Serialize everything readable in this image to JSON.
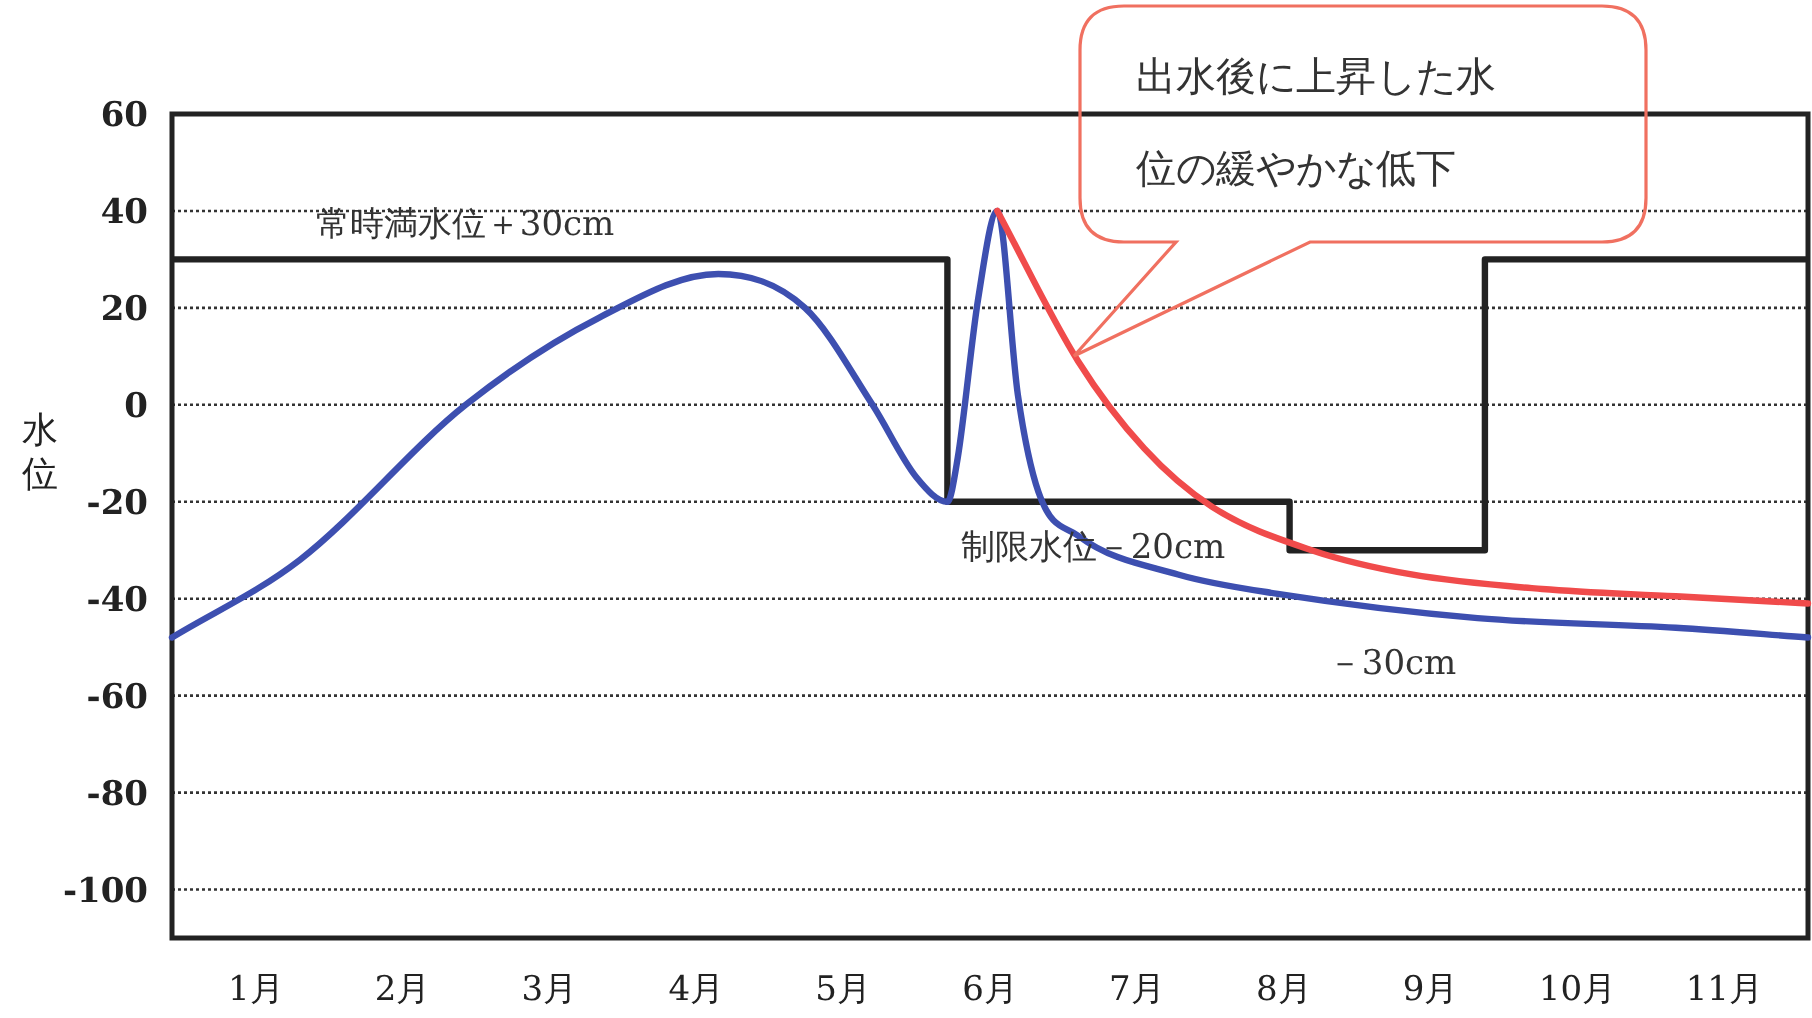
{
  "chart_data": {
    "type": "line",
    "ylabel": "水位",
    "xlim": [
      0.43,
      11.57
    ],
    "xticks": [
      {
        "value": 1,
        "label": "1月"
      },
      {
        "value": 2,
        "label": "2月"
      },
      {
        "value": 3,
        "label": "3月"
      },
      {
        "value": 4,
        "label": "4月"
      },
      {
        "value": 5,
        "label": "5月"
      },
      {
        "value": 6,
        "label": "6月"
      },
      {
        "value": 7,
        "label": "7月"
      },
      {
        "value": 8,
        "label": "8月"
      },
      {
        "value": 9,
        "label": "9月"
      },
      {
        "value": 10,
        "label": "10月"
      },
      {
        "value": 11,
        "label": "11月"
      }
    ],
    "ylim": [
      -110,
      60
    ],
    "yticks": [
      -100,
      -80,
      -60,
      -40,
      -20,
      0,
      20,
      40,
      60
    ],
    "grid": "y",
    "line_style": "solid",
    "series": [
      {
        "type": "step",
        "color": "#222222",
        "x": [
          0.43,
          5.71,
          8.04,
          9.37,
          11.57
        ],
        "values": [
          30,
          -20,
          -30,
          30,
          30
        ]
      },
      {
        "color": "#3d4fb0",
        "x": [
          0.43,
          1.3,
          2.43,
          3.34,
          4.15,
          4.74,
          5.2,
          5.5,
          5.71,
          5.78,
          5.92,
          6.05,
          6.19,
          6.33,
          6.6,
          7.28,
          7.96,
          9.32,
          10.67,
          11.57
        ],
        "values": [
          -48,
          -32,
          0,
          18,
          27,
          20,
          0,
          -15,
          -20,
          -11,
          22,
          40,
          2,
          -18,
          -27,
          -35,
          -39,
          -44,
          -46,
          -48
        ]
      },
      {
        "color": "#f04b4b",
        "x": [
          6.05,
          6.6,
          7.05,
          7.51,
          8.19,
          8.87,
          9.76,
          10.67,
          11.57
        ],
        "values": [
          40,
          9,
          -9,
          -21,
          -30,
          -35,
          -38,
          -39.5,
          -41
        ]
      }
    ],
    "annotations": [
      {
        "text": "常時満水位＋30cm",
        "x": 1.3,
        "y": 30
      },
      {
        "text": "制限水位－20cm",
        "x": 5.8,
        "y": -20
      },
      {
        "text": "－30cm",
        "x": 8.3,
        "y": -30
      },
      "出水後に上昇した水位の緩やかな低下"
    ]
  }
}
